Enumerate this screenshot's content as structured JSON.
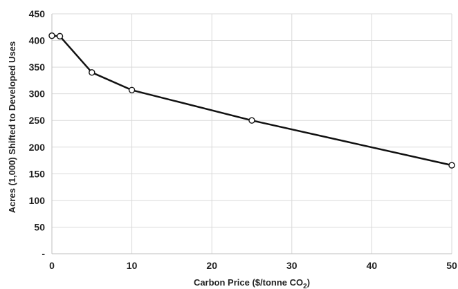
{
  "chart_data": {
    "type": "line",
    "title": "",
    "xlabel": "Carbon Price ($/tonne CO",
    "xlabel_subscript": "2",
    "xlabel_suffix": ")",
    "ylabel": "Acres (1,000) Shifted to Developed Uses",
    "xlim": [
      0,
      50
    ],
    "ylim": [
      0,
      450
    ],
    "xticks": [
      0,
      10,
      20,
      30,
      40,
      50
    ],
    "yticks": [
      0,
      50,
      100,
      150,
      200,
      250,
      300,
      350,
      400,
      450
    ],
    "ytick_labels": [
      "-",
      "50",
      "100",
      "150",
      "200",
      "250",
      "300",
      "350",
      "400",
      "450"
    ],
    "grid": true,
    "series": [
      {
        "x": [
          0,
          1,
          5,
          10,
          25,
          50
        ],
        "values": [
          409,
          408,
          340,
          307,
          250,
          166
        ]
      }
    ]
  }
}
